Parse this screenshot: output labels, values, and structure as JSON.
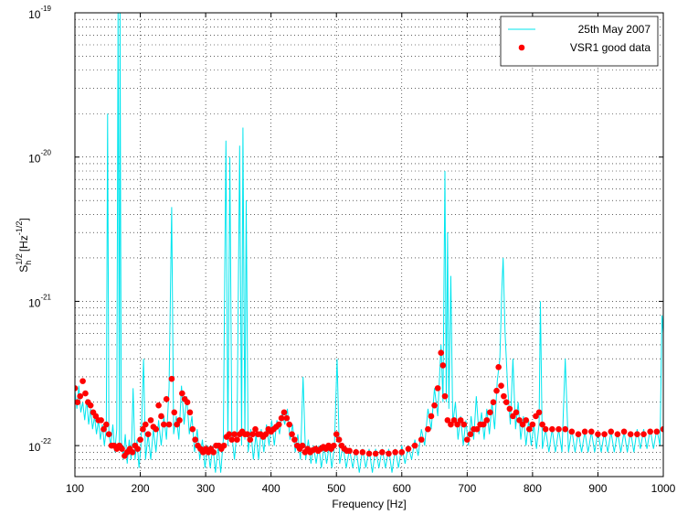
{
  "chart_data": {
    "type": "line",
    "xlabel": "Frequency [Hz]",
    "ylabel": {
      "base": "S",
      "sub": "h",
      "sup": "1/2",
      "unit": "[Hz",
      "unit_sup": "-1/2",
      "close": "]"
    },
    "xlim": [
      100,
      1000
    ],
    "xticks": [
      100,
      200,
      300,
      400,
      500,
      600,
      700,
      800,
      900,
      1000
    ],
    "ylim": [
      6.1e-23,
      1e-19
    ],
    "yscale": "log",
    "yticks": [
      {
        "value": 1e-22,
        "label": "10",
        "exponent": "-22"
      },
      {
        "value": 1e-21,
        "label": "10",
        "exponent": "-21"
      },
      {
        "value": 1e-20,
        "label": "10",
        "exponent": "-20"
      },
      {
        "value": 1e-19,
        "label": "10",
        "exponent": "-19"
      }
    ],
    "grid": true,
    "minor_grid": true,
    "legend": "northeast",
    "series": [
      {
        "name": "25th May 2007",
        "type": "line",
        "color": "#00e5ee",
        "x": [
          100,
          103,
          106,
          109,
          112,
          115,
          118,
          121,
          124,
          127,
          130,
          133,
          136,
          139,
          142,
          145,
          148,
          150,
          152,
          155,
          158,
          161,
          164,
          166,
          168,
          169,
          171,
          174,
          177,
          180,
          183,
          186,
          189,
          192,
          195,
          198,
          201,
          205,
          208,
          212,
          216,
          220,
          224,
          228,
          232,
          236,
          240,
          244,
          248,
          251,
          255,
          259,
          263,
          267,
          271,
          275,
          279,
          283,
          287,
          291,
          295,
          299,
          303,
          307,
          311,
          315,
          319,
          323,
          327,
          331,
          334,
          337,
          340,
          344,
          348,
          352,
          355,
          357,
          360,
          362,
          365,
          369,
          373,
          377,
          381,
          385,
          389,
          393,
          397,
          401,
          405,
          409,
          413,
          417,
          421,
          425,
          429,
          433,
          437,
          441,
          445,
          449,
          453,
          457,
          461,
          465,
          469,
          473,
          477,
          481,
          485,
          489,
          493,
          497,
          501,
          505,
          510,
          515,
          520,
          525,
          530,
          535,
          540,
          545,
          550,
          555,
          560,
          565,
          570,
          575,
          580,
          585,
          590,
          595,
          600,
          605,
          610,
          615,
          620,
          625,
          630,
          635,
          640,
          645,
          650,
          655,
          660,
          663,
          666,
          668,
          670,
          672,
          675,
          678,
          682,
          686,
          690,
          694,
          698,
          702,
          706,
          710,
          714,
          718,
          722,
          726,
          730,
          734,
          738,
          742,
          746,
          750,
          753,
          755,
          758,
          762,
          766,
          770,
          774,
          778,
          782,
          786,
          790,
          794,
          798,
          802,
          806,
          810,
          812,
          815,
          820,
          825,
          830,
          835,
          840,
          845,
          850,
          855,
          860,
          865,
          870,
          875,
          880,
          885,
          890,
          895,
          900,
          905,
          910,
          915,
          920,
          925,
          930,
          935,
          940,
          945,
          950,
          955,
          960,
          965,
          970,
          975,
          980,
          985,
          990,
          995,
          998,
          1000
        ],
        "values": [
          2.4e-22,
          1.8e-22,
          2.6e-22,
          1.7e-22,
          2e-22,
          1.5e-22,
          2.1e-22,
          1.4e-22,
          1.8e-22,
          1.3e-22,
          1.6e-22,
          1.2e-22,
          1.5e-22,
          1.1e-22,
          1.4e-22,
          1e-22,
          1.3e-22,
          2e-20,
          1.2e-22,
          1e-22,
          1.4e-22,
          9e-23,
          1.3e-22,
          1e-19,
          1e-22,
          1e-19,
          1.1e-22,
          8e-23,
          1.2e-22,
          7.5e-23,
          1.1e-22,
          8e-23,
          2.5e-22,
          8e-23,
          1.1e-22,
          7e-23,
          1e-22,
          4e-22,
          8e-23,
          1.2e-22,
          8e-23,
          1.3e-22,
          9e-23,
          1.5e-22,
          1e-22,
          1.6e-22,
          1.1e-22,
          2.5e-22,
          4.5e-21,
          1.2e-22,
          1.6e-22,
          1.1e-22,
          2.6e-22,
          1.4e-22,
          2.2e-22,
          1.2e-22,
          1.6e-22,
          9e-23,
          1.3e-22,
          8e-23,
          1.1e-22,
          7e-23,
          1e-22,
          7e-23,
          1e-22,
          6.5e-23,
          1e-22,
          6.5e-23,
          1.1e-22,
          1.3e-20,
          1e-22,
          1e-20,
          1.2e-22,
          8e-23,
          1.3e-22,
          1.2e-20,
          1e-22,
          1.6e-20,
          1.1e-22,
          5e-21,
          9e-23,
          1.3e-22,
          8e-23,
          1.2e-22,
          8e-23,
          1.3e-22,
          9e-23,
          1.4e-22,
          1e-22,
          1.5e-22,
          1e-22,
          1.5e-22,
          1.2e-22,
          1.7e-22,
          1.4e-22,
          1.8e-22,
          1.1e-22,
          1.4e-22,
          9e-23,
          1.2e-22,
          8e-23,
          3e-22,
          8e-23,
          1.1e-22,
          7.5e-23,
          1e-22,
          7.5e-23,
          1e-22,
          7e-23,
          1e-22,
          7.5e-23,
          1e-22,
          7e-23,
          1e-22,
          4e-22,
          7.5e-23,
          1e-22,
          7e-23,
          9.5e-23,
          7e-23,
          9.5e-23,
          6.5e-23,
          9.5e-23,
          7e-23,
          9.5e-23,
          6.5e-23,
          9.5e-23,
          7e-23,
          9.5e-23,
          7e-23,
          9.5e-23,
          6.5e-23,
          9.5e-23,
          7e-23,
          1e-22,
          7.5e-23,
          1e-22,
          8e-23,
          1.1e-22,
          8.5e-23,
          1.3e-22,
          1e-22,
          1.8e-22,
          1.3e-22,
          2.5e-22,
          1.6e-22,
          5e-22,
          2e-22,
          8e-21,
          2e-22,
          3e-21,
          1.8e-22,
          1.5e-21,
          1.4e-22,
          2e-22,
          1.1e-22,
          1.6e-22,
          1e-22,
          1.5e-22,
          1e-22,
          1.6e-22,
          1.1e-22,
          2.2e-22,
          1.2e-22,
          1.7e-22,
          1.1e-22,
          1.8e-22,
          1.2e-22,
          2e-22,
          1.3e-22,
          2.8e-22,
          4e-22,
          1.2e-21,
          2e-21,
          6e-22,
          2.5e-22,
          1.4e-22,
          4e-22,
          1.3e-22,
          2e-22,
          1.1e-22,
          1.6e-22,
          1e-22,
          1.5e-22,
          1e-22,
          1.4e-22,
          9.5e-23,
          1.4e-22,
          1e-21,
          9.5e-23,
          1.3e-22,
          9e-23,
          1.3e-22,
          9e-23,
          1.3e-22,
          9e-23,
          4e-22,
          9e-23,
          1.3e-22,
          9e-23,
          1.25e-22,
          9e-23,
          1.25e-22,
          9e-23,
          1.25e-22,
          9e-23,
          1.25e-22,
          9e-23,
          1.25e-22,
          9e-23,
          1.25e-22,
          9e-23,
          1.25e-22,
          9e-23,
          1.25e-22,
          9e-23,
          1.25e-22,
          9e-23,
          1.3e-22,
          9.5e-23,
          1.3e-22,
          9.5e-23,
          1.3e-22,
          9.5e-23,
          1.3e-22,
          1e-22,
          8e-22,
          6e-22
        ]
      },
      {
        "name": "VSR1 good data",
        "type": "scatter",
        "color": "#ff0000",
        "x": [
          100,
          104,
          108,
          112,
          116,
          120,
          124,
          128,
          132,
          136,
          140,
          144,
          148,
          152,
          156,
          160,
          164,
          168,
          172,
          176,
          180,
          184,
          188,
          192,
          196,
          200,
          204,
          208,
          212,
          216,
          220,
          224,
          228,
          232,
          236,
          240,
          244,
          248,
          252,
          256,
          260,
          264,
          268,
          272,
          276,
          280,
          284,
          288,
          292,
          296,
          300,
          304,
          308,
          312,
          316,
          320,
          324,
          328,
          332,
          336,
          340,
          344,
          348,
          352,
          356,
          360,
          364,
          368,
          372,
          376,
          380,
          384,
          388,
          392,
          396,
          400,
          404,
          408,
          412,
          416,
          420,
          424,
          428,
          432,
          436,
          440,
          444,
          448,
          452,
          456,
          460,
          464,
          468,
          472,
          476,
          480,
          484,
          488,
          492,
          496,
          500,
          504,
          508,
          512,
          516,
          520,
          530,
          540,
          550,
          560,
          570,
          580,
          590,
          600,
          610,
          620,
          630,
          640,
          645,
          650,
          655,
          660,
          663,
          666,
          670,
          675,
          680,
          685,
          690,
          695,
          700,
          705,
          710,
          715,
          720,
          725,
          730,
          735,
          740,
          745,
          748,
          752,
          756,
          760,
          765,
          770,
          775,
          780,
          785,
          790,
          795,
          800,
          805,
          810,
          815,
          820,
          830,
          840,
          850,
          860,
          870,
          880,
          890,
          900,
          910,
          920,
          930,
          940,
          950,
          960,
          970,
          980,
          990,
          1000
        ],
        "values": [
          2.5e-22,
          2e-22,
          2.2e-22,
          2.8e-22,
          2.3e-22,
          2e-22,
          1.9e-22,
          1.7e-22,
          1.6e-22,
          1.5e-22,
          1.5e-22,
          1.3e-22,
          1.4e-22,
          1.2e-22,
          1e-22,
          1e-22,
          9.5e-23,
          1e-22,
          9.5e-23,
          8.5e-23,
          9e-23,
          9.5e-23,
          9e-23,
          1e-22,
          9.5e-23,
          1.1e-22,
          1.3e-22,
          1.4e-22,
          1.2e-22,
          1.5e-22,
          1.35e-22,
          1.3e-22,
          1.9e-22,
          1.6e-22,
          1.4e-22,
          2.1e-22,
          1.4e-22,
          2.9e-22,
          1.7e-22,
          1.4e-22,
          1.5e-22,
          2.3e-22,
          2.1e-22,
          2e-22,
          1.7e-22,
          1.3e-22,
          1.1e-22,
          1e-22,
          9.5e-23,
          9e-23,
          9.5e-23,
          9e-23,
          9.5e-23,
          9e-23,
          1e-22,
          1e-22,
          9.5e-23,
          1e-22,
          1.15e-22,
          1.2e-22,
          1.1e-22,
          1.2e-22,
          1.1e-22,
          1.2e-22,
          1.25e-22,
          1.2e-22,
          1.2e-22,
          1.1e-22,
          1.2e-22,
          1.3e-22,
          1.2e-22,
          1.2e-22,
          1.15e-22,
          1.2e-22,
          1.3e-22,
          1.25e-22,
          1.3e-22,
          1.35e-22,
          1.4e-22,
          1.55e-22,
          1.7e-22,
          1.55e-22,
          1.4e-22,
          1.2e-22,
          1.1e-22,
          1e-22,
          9.5e-23,
          1e-22,
          9e-23,
          9.5e-23,
          9e-23,
          9.3e-23,
          9.5e-23,
          9.2e-23,
          9.5e-23,
          9.8e-23,
          9.5e-23,
          1e-22,
          9.5e-23,
          1e-22,
          1.2e-22,
          1.1e-22,
          1e-22,
          9.5e-23,
          9.2e-23,
          9.2e-23,
          9e-23,
          9e-23,
          8.8e-23,
          8.8e-23,
          9e-23,
          8.8e-23,
          9e-23,
          9e-23,
          9.5e-23,
          1e-22,
          1.1e-22,
          1.3e-22,
          1.6e-22,
          1.9e-22,
          2.5e-22,
          4.4e-22,
          3.6e-22,
          2.2e-22,
          1.5e-22,
          1.4e-22,
          1.5e-22,
          1.4e-22,
          1.5e-22,
          1.4e-22,
          1.1e-22,
          1.2e-22,
          1.3e-22,
          1.3e-22,
          1.4e-22,
          1.4e-22,
          1.5e-22,
          1.7e-22,
          2e-22,
          2.4e-22,
          3.5e-22,
          2.6e-22,
          2.2e-22,
          2e-22,
          1.8e-22,
          1.6e-22,
          1.7e-22,
          1.5e-22,
          1.4e-22,
          1.5e-22,
          1.3e-22,
          1.4e-22,
          1.6e-22,
          1.7e-22,
          1.4e-22,
          1.3e-22,
          1.3e-22,
          1.3e-22,
          1.3e-22,
          1.25e-22,
          1.2e-22,
          1.25e-22,
          1.25e-22,
          1.2e-22,
          1.2e-22,
          1.25e-22,
          1.2e-22,
          1.25e-22,
          1.2e-22,
          1.2e-22,
          1.2e-22,
          1.25e-22,
          1.25e-22,
          1.3e-22
        ]
      }
    ]
  }
}
